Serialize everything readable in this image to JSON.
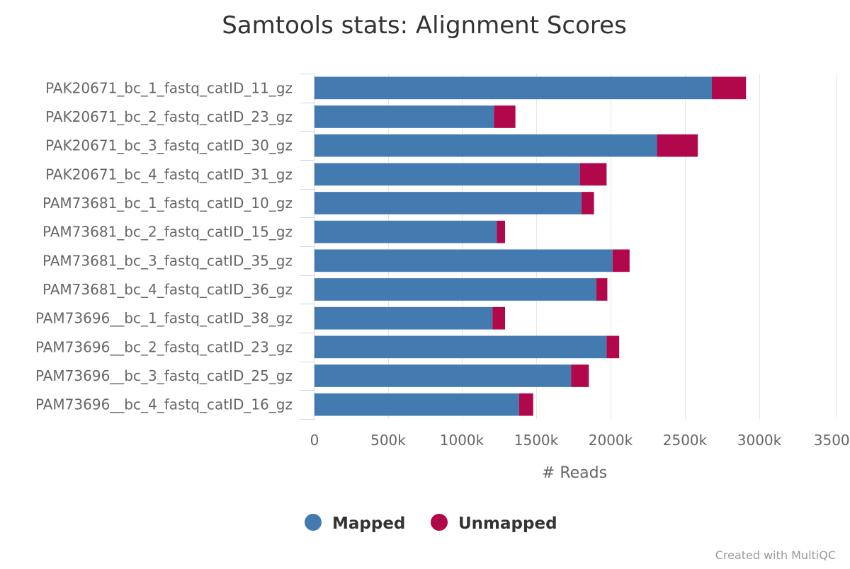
{
  "chart_data": {
    "type": "bar",
    "orientation": "horizontal",
    "stacked": true,
    "title": "Samtools stats: Alignment Scores",
    "xlabel": "# Reads",
    "ylabel": "",
    "xlim": [
      0,
      3500000
    ],
    "x_tick_labels": [
      "0",
      "500k",
      "1000k",
      "1500k",
      "2000k",
      "2500k",
      "3000k",
      "3500k"
    ],
    "x_tick_values": [
      0,
      500000,
      1000000,
      1500000,
      2000000,
      2500000,
      3000000,
      3500000
    ],
    "grid": "vertical",
    "legend_position": "bottom-center",
    "categories": [
      "PAK20671_bc_1_fastq_catID_11_gz",
      "PAK20671_bc_2_fastq_catID_23_gz",
      "PAK20671_bc_3_fastq_catID_30_gz",
      "PAK20671_bc_4_fastq_catID_31_gz",
      "PAM73681_bc_1_fastq_catID_10_gz",
      "PAM73681_bc_2_fastq_catID_15_gz",
      "PAM73681_bc_3_fastq_catID_35_gz",
      "PAM73681_bc_4_fastq_catID_36_gz",
      "PAM73696__bc_1_fastq_catID_38_gz",
      "PAM73696__bc_2_fastq_catID_23_gz",
      "PAM73696__bc_3_fastq_catID_25_gz",
      "PAM73696__bc_4_fastq_catID_16_gz"
    ],
    "series": [
      {
        "name": "Mapped",
        "color": "#437bb1",
        "values": [
          2680000,
          1210000,
          2310000,
          1790000,
          1800000,
          1230000,
          2010000,
          1900000,
          1200000,
          1970000,
          1730000,
          1380000
        ]
      },
      {
        "name": "Unmapped",
        "color": "#b1084c",
        "values": [
          230000,
          145000,
          275000,
          180000,
          85000,
          55000,
          115000,
          75000,
          85000,
          85000,
          120000,
          95000
        ]
      }
    ]
  },
  "credit": "Created with MultiQC",
  "colors": {
    "axis": "#ccd6eb",
    "grid": "#e6e6e6",
    "text": "#333333",
    "label": "#666666",
    "credit": "#999999"
  }
}
